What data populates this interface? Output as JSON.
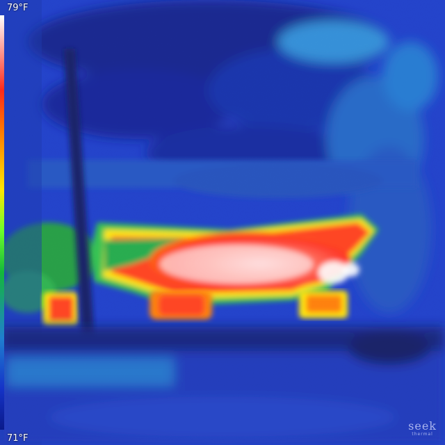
{
  "scale": {
    "max_label": "79°F",
    "min_label": "71°F"
  },
  "brand": {
    "name": "seek",
    "sub": "thermal"
  },
  "colors": {
    "cold": "#0a1f9a",
    "cool": "#1f5fd0",
    "mid": "#1fa64a",
    "warm": "#ffe600",
    "hot": "#ff2a1a",
    "hottest": "#ffffff"
  }
}
